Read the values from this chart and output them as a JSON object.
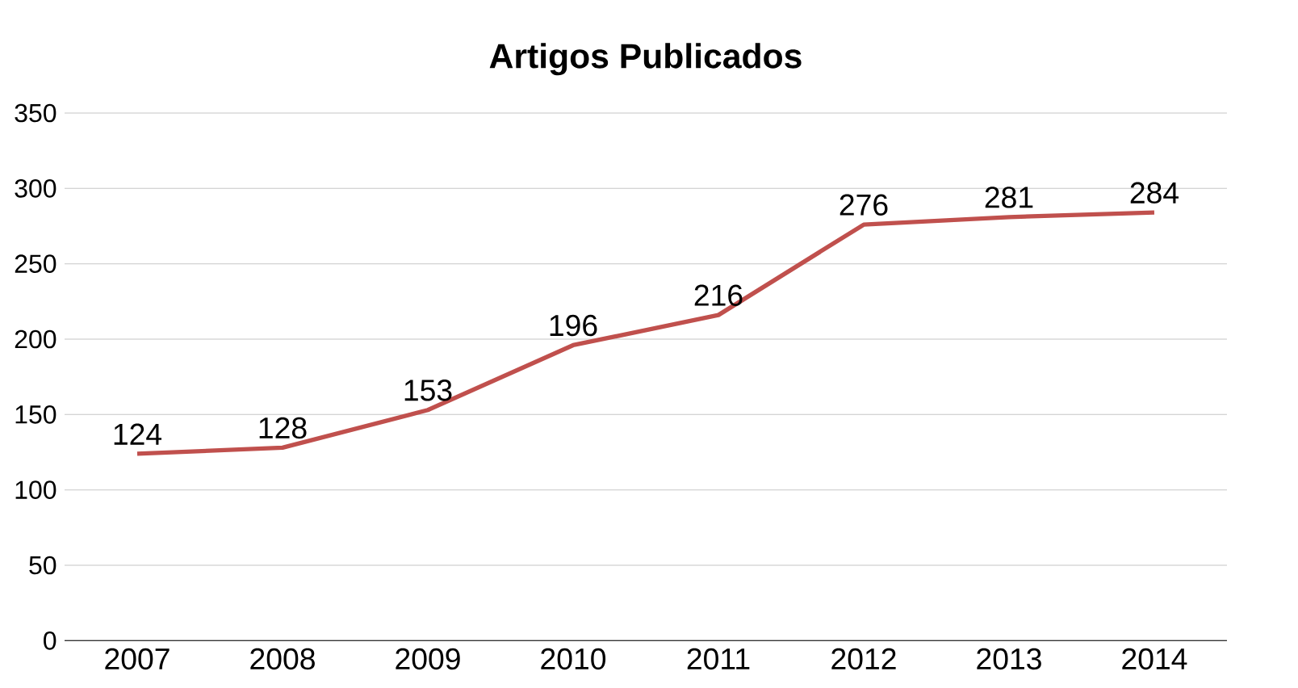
{
  "chart_data": {
    "type": "line",
    "title": "Artigos Publicados",
    "categories": [
      "2007",
      "2008",
      "2009",
      "2010",
      "2011",
      "2012",
      "2013",
      "2014"
    ],
    "series": [
      {
        "color": "#c0504d",
        "values": [
          124,
          128,
          153,
          196,
          216,
          276,
          281,
          284
        ]
      }
    ],
    "ylim": [
      0,
      350
    ],
    "yticks": [
      0,
      50,
      100,
      150,
      200,
      250,
      300,
      350
    ],
    "grid": "y",
    "data_labels": true,
    "marker": "none",
    "line_style": "solid"
  }
}
